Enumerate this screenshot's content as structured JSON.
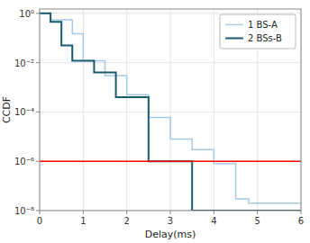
{
  "chart_data": {
    "type": "line",
    "xlabel": "Delay(ms)",
    "ylabel": "CCDF",
    "xlim": [
      0,
      6
    ],
    "ylim": [
      1e-08,
      1.5
    ],
    "log": "y",
    "grid": true,
    "legend": "upper right",
    "xticks": [
      0,
      1,
      2,
      3,
      4,
      5,
      6
    ],
    "yticks": [
      {
        "value": 1e-08,
        "label": "10⁻⁸"
      },
      {
        "value": 1e-06,
        "label": "10⁻⁶"
      },
      {
        "value": 0.0001,
        "label": "10⁻⁴"
      },
      {
        "value": 0.01,
        "label": "10⁻²"
      },
      {
        "value": 1.0,
        "label": "10⁰"
      }
    ],
    "hline": {
      "value": 1e-06,
      "color": "red"
    },
    "series": [
      {
        "name": "1 BS-A",
        "color": "#a8c8e8",
        "x": [
          0.0,
          0.25,
          0.25,
          0.75,
          0.75,
          1.0,
          1.0,
          1.5,
          1.5,
          2.0,
          2.0,
          2.5,
          2.5,
          3.0,
          3.0,
          3.5,
          3.5,
          4.0,
          4.0,
          4.5,
          4.5,
          4.8,
          4.8,
          6.0
        ],
        "values": [
          1.0,
          1.0,
          0.55,
          0.55,
          0.15,
          0.15,
          0.012,
          0.012,
          0.003,
          0.003,
          0.0005,
          0.0005,
          6e-05,
          6e-05,
          8e-06,
          8e-06,
          3e-06,
          3e-06,
          8e-07,
          8e-07,
          3e-08,
          3e-08,
          2e-08,
          2e-08
        ]
      },
      {
        "name": "2 BSs-B",
        "color": "#1a5a6e",
        "x": [
          0.0,
          0.25,
          0.25,
          0.5,
          0.5,
          0.75,
          0.75,
          1.25,
          1.25,
          1.75,
          1.75,
          2.5,
          2.5,
          3.0,
          3.0,
          3.5,
          3.5,
          6.0
        ],
        "values": [
          1.0,
          1.0,
          0.45,
          0.45,
          0.05,
          0.05,
          0.012,
          0.012,
          0.004,
          0.004,
          0.0004,
          0.0004,
          1e-06,
          1e-06,
          1e-06,
          1e-06,
          1e-08,
          1e-08
        ]
      }
    ]
  }
}
